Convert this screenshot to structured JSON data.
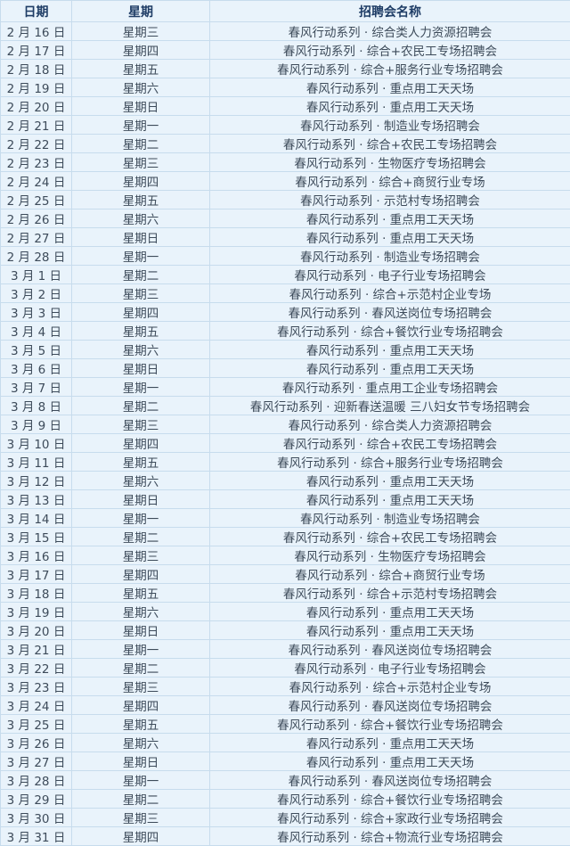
{
  "headers": [
    "日期",
    "星期",
    "招聘会名称"
  ],
  "rows": [
    [
      "2 月 16 日",
      "星期三",
      "春风行动系列 · 综合类人力资源招聘会"
    ],
    [
      "2 月 17 日",
      "星期四",
      "春风行动系列 · 综合+农民工专场招聘会"
    ],
    [
      "2 月 18 日",
      "星期五",
      "春风行动系列 · 综合+服务行业专场招聘会"
    ],
    [
      "2 月 19 日",
      "星期六",
      "春风行动系列 · 重点用工天天场"
    ],
    [
      "2 月 20 日",
      "星期日",
      "春风行动系列 · 重点用工天天场"
    ],
    [
      "2 月 21 日",
      "星期一",
      "春风行动系列 · 制造业专场招聘会"
    ],
    [
      "2 月 22 日",
      "星期二",
      "春风行动系列 · 综合+农民工专场招聘会"
    ],
    [
      "2 月 23 日",
      "星期三",
      "春风行动系列 · 生物医疗专场招聘会"
    ],
    [
      "2 月 24 日",
      "星期四",
      "春风行动系列 · 综合+商贸行业专场"
    ],
    [
      "2 月 25 日",
      "星期五",
      "春风行动系列 · 示范村专场招聘会"
    ],
    [
      "2 月 26 日",
      "星期六",
      "春风行动系列 · 重点用工天天场"
    ],
    [
      "2 月 27 日",
      "星期日",
      "春风行动系列 · 重点用工天天场"
    ],
    [
      "2 月 28 日",
      "星期一",
      "春风行动系列 · 制造业专场招聘会"
    ],
    [
      "3 月 1 日",
      "星期二",
      "春风行动系列 · 电子行业专场招聘会"
    ],
    [
      "3 月 2 日",
      "星期三",
      "春风行动系列 · 综合+示范村企业专场"
    ],
    [
      "3 月 3 日",
      "星期四",
      "春风行动系列 · 春风送岗位专场招聘会"
    ],
    [
      "3 月 4 日",
      "星期五",
      "春风行动系列 · 综合+餐饮行业专场招聘会"
    ],
    [
      "3 月 5 日",
      "星期六",
      "春风行动系列 · 重点用工天天场"
    ],
    [
      "3 月 6 日",
      "星期日",
      "春风行动系列 · 重点用工天天场"
    ],
    [
      "3 月 7 日",
      "星期一",
      "春风行动系列 · 重点用工企业专场招聘会"
    ],
    [
      "3 月 8 日",
      "星期二",
      "春风行动系列 · 迎新春送温暖  三八妇女节专场招聘会"
    ],
    [
      "3 月 9 日",
      "星期三",
      "春风行动系列 · 综合类人力资源招聘会"
    ],
    [
      "3 月 10 日",
      "星期四",
      "春风行动系列 · 综合+农民工专场招聘会"
    ],
    [
      "3 月 11 日",
      "星期五",
      "春风行动系列 · 综合+服务行业专场招聘会"
    ],
    [
      "3 月 12 日",
      "星期六",
      "春风行动系列 · 重点用工天天场"
    ],
    [
      "3 月 13 日",
      "星期日",
      "春风行动系列 · 重点用工天天场"
    ],
    [
      "3 月 14 日",
      "星期一",
      "春风行动系列 · 制造业专场招聘会"
    ],
    [
      "3 月 15 日",
      "星期二",
      "春风行动系列 · 综合+农民工专场招聘会"
    ],
    [
      "3 月 16 日",
      "星期三",
      "春风行动系列 · 生物医疗专场招聘会"
    ],
    [
      "3 月 17 日",
      "星期四",
      "春风行动系列 · 综合+商贸行业专场"
    ],
    [
      "3 月 18 日",
      "星期五",
      "春风行动系列 · 综合+示范村专场招聘会"
    ],
    [
      "3 月 19 日",
      "星期六",
      "春风行动系列 · 重点用工天天场"
    ],
    [
      "3 月 20 日",
      "星期日",
      "春风行动系列 · 重点用工天天场"
    ],
    [
      "3 月 21 日",
      "星期一",
      "春风行动系列 · 春风送岗位专场招聘会"
    ],
    [
      "3 月 22 日",
      "星期二",
      "春风行动系列 · 电子行业专场招聘会"
    ],
    [
      "3 月 23 日",
      "星期三",
      "春风行动系列 · 综合+示范村企业专场"
    ],
    [
      "3 月 24 日",
      "星期四",
      "春风行动系列 · 春风送岗位专场招聘会"
    ],
    [
      "3 月 25 日",
      "星期五",
      "春风行动系列 · 综合+餐饮行业专场招聘会"
    ],
    [
      "3 月 26 日",
      "星期六",
      "春风行动系列 · 重点用工天天场"
    ],
    [
      "3 月 27 日",
      "星期日",
      "春风行动系列 · 重点用工天天场"
    ],
    [
      "3 月 28 日",
      "星期一",
      "春风行动系列 · 春风送岗位专场招聘会"
    ],
    [
      "3 月 29 日",
      "星期二",
      "春风行动系列 · 综合+餐饮行业专场招聘会"
    ],
    [
      "3 月 30 日",
      "星期三",
      "春风行动系列 · 综合+家政行业专场招聘会"
    ],
    [
      "3 月 31 日",
      "星期四",
      "春风行动系列 · 综合+物流行业专场招聘会"
    ]
  ],
  "colors": {
    "background": "#e9f3fb",
    "border": "#c7dced",
    "header_text": "#1f3d66",
    "text": "#3d4b5a"
  }
}
